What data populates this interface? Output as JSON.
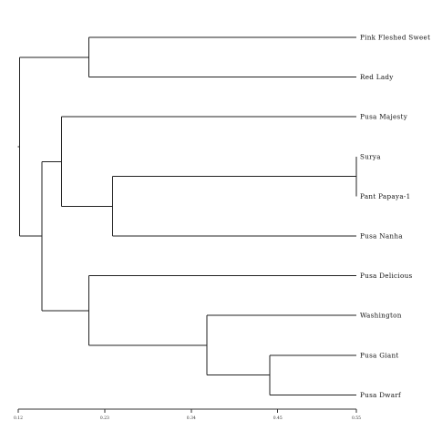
{
  "dendrogram": {
    "leaves": [
      "Pink Fleshed Sweet",
      "Red Lady",
      "Pusa Majesty",
      "Surya",
      "Pant Papaya-1",
      "Pusa Nanha",
      "Pusa Delicious",
      "Washington",
      "Pusa Giant",
      "Pusa Dwarf"
    ],
    "axis_ticks": [
      {
        "value": 0.12,
        "label": "0.12"
      },
      {
        "value": 0.23,
        "label": "0.23"
      },
      {
        "value": 0.34,
        "label": "0.34"
      },
      {
        "value": 0.45,
        "label": "0.45"
      },
      {
        "value": 0.55,
        "label": "0.55"
      }
    ],
    "axis_range": [
      0.12,
      0.55
    ],
    "merges": [
      {
        "id": "A",
        "children": [
          "Surya",
          "Pant Papaya-1"
        ],
        "height": 0.55
      },
      {
        "id": "B",
        "children": [
          "Pusa Giant",
          "Pusa Dwarf"
        ],
        "height": 0.44
      },
      {
        "id": "C",
        "children": [
          "Washington",
          "B"
        ],
        "height": 0.36
      },
      {
        "id": "D",
        "children": [
          "Pusa Delicious",
          "C"
        ],
        "height": 0.21
      },
      {
        "id": "E",
        "children": [
          "A",
          "Pusa Nanha"
        ],
        "height": 0.24
      },
      {
        "id": "F",
        "children": [
          "Pusa Majesty",
          "E"
        ],
        "height": 0.175
      },
      {
        "id": "G",
        "children": [
          "F",
          "D"
        ],
        "height": 0.15
      },
      {
        "id": "H",
        "children": [
          "Pink Fleshed Sweet",
          "Red Lady"
        ],
        "height": 0.21
      },
      {
        "id": "root",
        "children": [
          "H",
          "G"
        ],
        "height": 0.122
      }
    ]
  }
}
